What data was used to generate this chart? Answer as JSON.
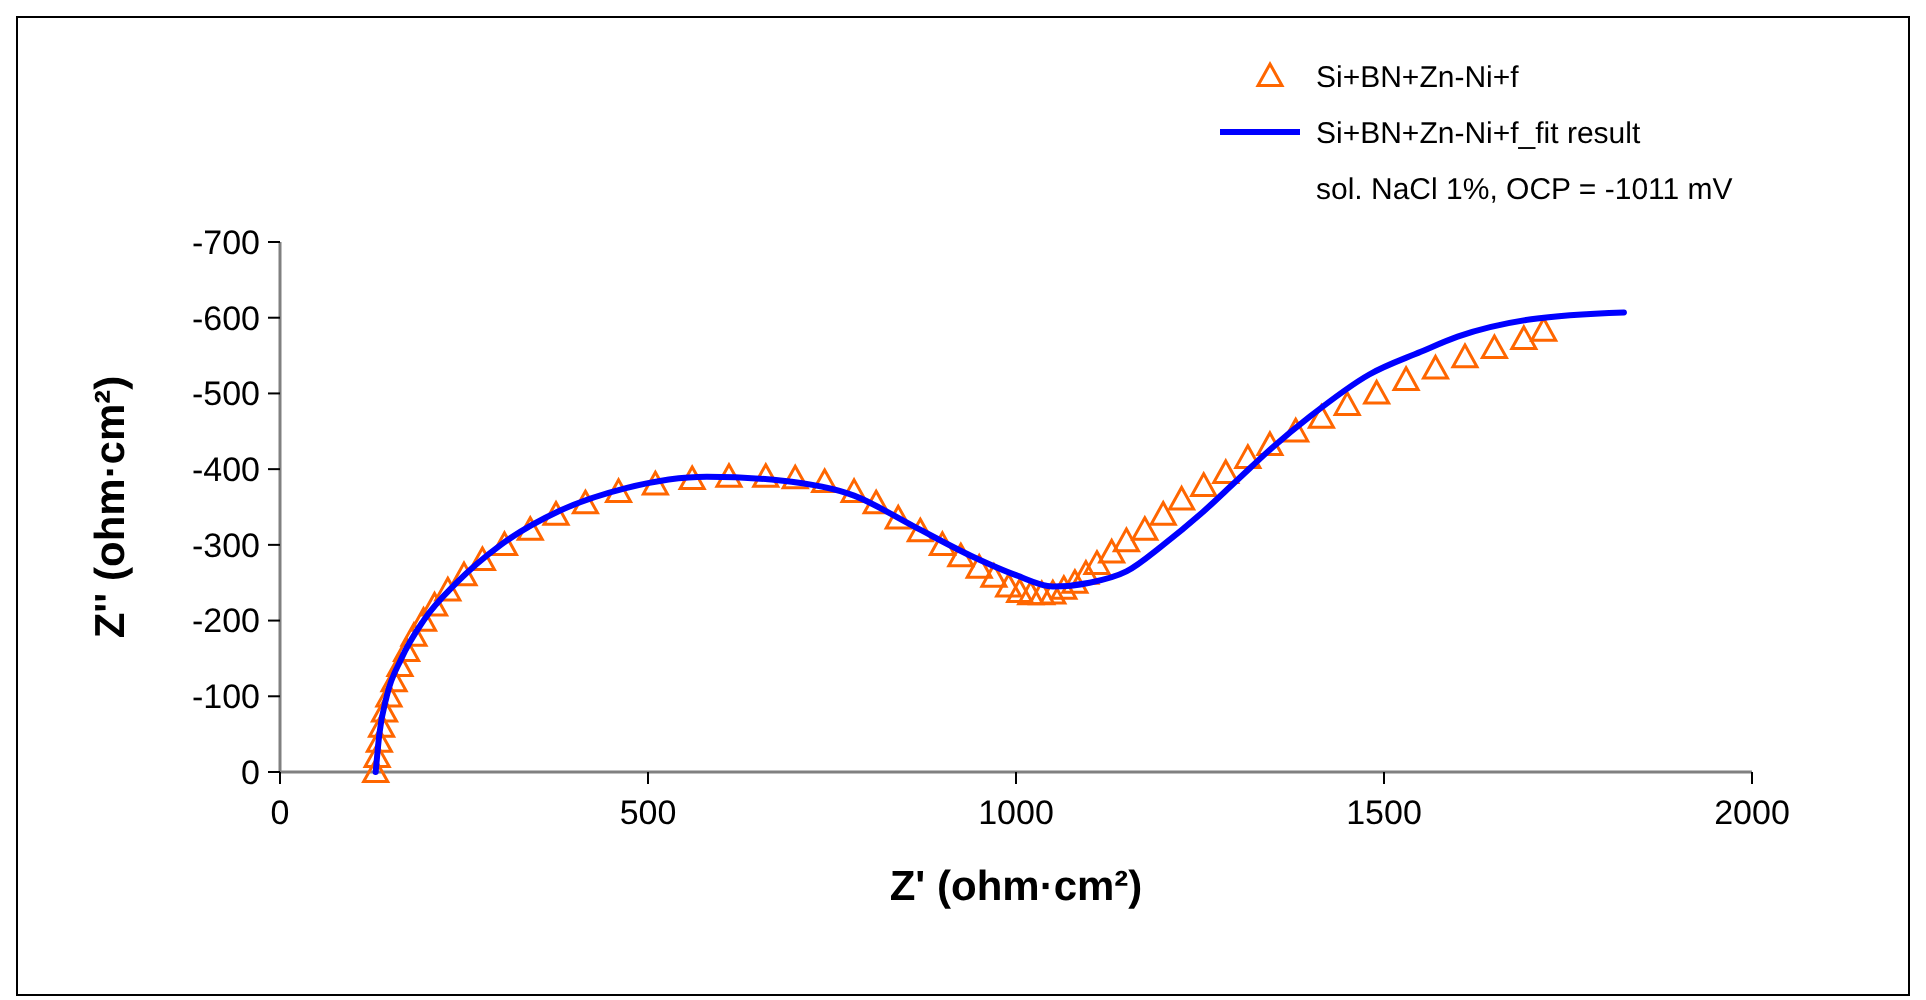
{
  "chart_data": {
    "type": "scatter",
    "xlabel": "Z' (ohm·cm²)",
    "ylabel": "Z'' (ohm·cm²)",
    "xlim": [
      0,
      2000
    ],
    "xticks": [
      0,
      500,
      1000,
      1500,
      2000
    ],
    "ylim": [
      0,
      -700
    ],
    "yticks": [
      0,
      -100,
      -200,
      -300,
      -400,
      -500,
      -600,
      -700
    ],
    "grid": false,
    "legend": "top right",
    "annotations": [
      "sol. NaCl 1%, OCP = -1011 mV"
    ],
    "series": [
      {
        "name": "Si+BN+Zn-Ni+f",
        "marker": "triangle",
        "color": "#ff6600",
        "x": [
          130,
          132,
          135,
          138,
          142,
          148,
          155,
          163,
          172,
          182,
          195,
          210,
          228,
          250,
          275,
          305,
          340,
          375,
          415,
          460,
          510,
          560,
          610,
          660,
          700,
          740,
          780,
          810,
          840,
          870,
          900,
          925,
          950,
          970,
          990,
          1005,
          1020,
          1035,
          1050,
          1065,
          1080,
          1095,
          1110,
          1130,
          1150,
          1175,
          1200,
          1225,
          1255,
          1285,
          1315,
          1345,
          1380,
          1415,
          1450,
          1490,
          1530,
          1570,
          1610,
          1650,
          1690,
          1717
        ],
        "values": [
          0,
          -20,
          -40,
          -60,
          -80,
          -100,
          -120,
          -140,
          -160,
          -180,
          -200,
          -220,
          -240,
          -260,
          -280,
          -300,
          -320,
          -340,
          -355,
          -370,
          -380,
          -387,
          -390,
          -390,
          -388,
          -383,
          -370,
          -355,
          -335,
          -318,
          -300,
          -285,
          -270,
          -258,
          -245,
          -238,
          -235,
          -235,
          -236,
          -242,
          -250,
          -262,
          -275,
          -290,
          -305,
          -320,
          -340,
          -360,
          -378,
          -395,
          -415,
          -432,
          -450,
          -468,
          -485,
          -500,
          -518,
          -533,
          -548,
          -560,
          -572,
          -583
        ]
      },
      {
        "name": "Si+BN+Zn-Ni+f_fit result",
        "type": "line",
        "marker": "none",
        "line_style": "solid",
        "color": "#0000ff",
        "x": [
          130,
          135,
          145,
          165,
          195,
          240,
          300,
          380,
          470,
          580,
          680,
          780,
          860,
          940,
          1000,
          1050,
          1100,
          1150,
          1200,
          1250,
          1300,
          1350,
          1400,
          1480,
          1550,
          1600,
          1700,
          1826
        ],
        "values": [
          0,
          -50,
          -100,
          -150,
          -200,
          -250,
          -300,
          -345,
          -375,
          -390,
          -385,
          -365,
          -325,
          -285,
          -260,
          -245,
          -250,
          -265,
          -300,
          -340,
          -385,
          -430,
          -470,
          -525,
          -555,
          -575,
          -598,
          -607
        ]
      }
    ]
  }
}
